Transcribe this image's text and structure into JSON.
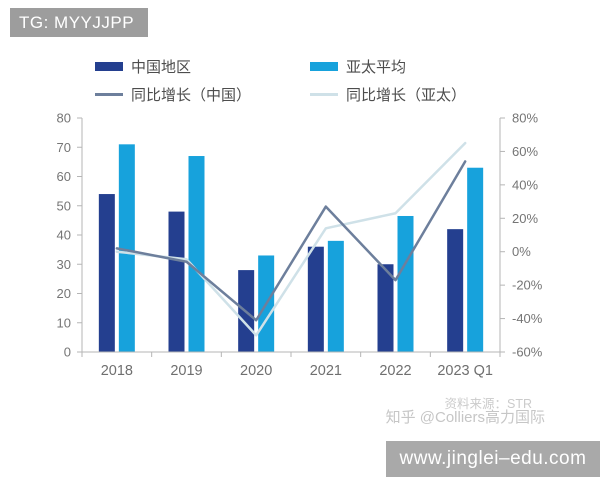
{
  "badge": {
    "text": "TG: MYYJJPP"
  },
  "chart_data": {
    "type": "bar",
    "subtype": "grouped-bars-with-yoy-lines",
    "title": "",
    "categories": [
      "2018",
      "2019",
      "2020",
      "2021",
      "2022",
      "2023 Q1"
    ],
    "series": [
      {
        "name": "中国地区",
        "kind": "bar",
        "axis": "left",
        "color": "#243f8f",
        "values": [
          54,
          48,
          28,
          36,
          30,
          42
        ]
      },
      {
        "name": "亚太平均",
        "kind": "bar",
        "axis": "left",
        "color": "#17a2dc",
        "values": [
          71,
          67,
          33,
          38,
          46.5,
          63
        ]
      },
      {
        "name": "同比增长（中国）",
        "kind": "line",
        "axis": "right",
        "color": "#6d7f9c",
        "values": [
          2,
          -6,
          -41,
          27,
          -17,
          54
        ]
      },
      {
        "name": "同比增长（亚太）",
        "kind": "line",
        "axis": "right",
        "color": "#cfe1e8",
        "values": [
          0,
          -4.5,
          -50,
          14,
          23,
          65
        ]
      }
    ],
    "left_axis": {
      "min": 0,
      "max": 80,
      "step": 10
    },
    "right_axis": {
      "min": -60,
      "max": 80,
      "step": 20,
      "suffix": "%"
    },
    "grid": false,
    "legend_position": "top"
  },
  "source": {
    "line1": "资料来源：STR",
    "line2": "知乎 @Colliers高力国际"
  },
  "footer_banner": {
    "url": "www.jinglei–edu.com"
  },
  "colors": {
    "axis": "#b5b5b5",
    "tick_label": "#757575",
    "category_label": "#6f6f6f"
  }
}
